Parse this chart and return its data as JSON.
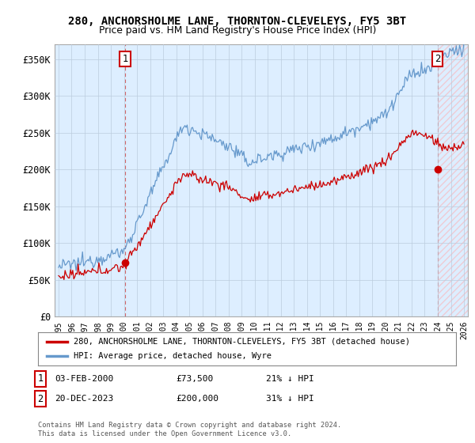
{
  "title": "280, ANCHORSHOLME LANE, THORNTON-CLEVELEYS, FY5 3BT",
  "subtitle": "Price paid vs. HM Land Registry's House Price Index (HPI)",
  "title_fontsize": 10,
  "subtitle_fontsize": 9,
  "ylim": [
    0,
    370000
  ],
  "yticks": [
    0,
    50000,
    100000,
    150000,
    200000,
    250000,
    300000,
    350000
  ],
  "ytick_labels": [
    "£0",
    "£50K",
    "£100K",
    "£150K",
    "£200K",
    "£250K",
    "£300K",
    "£350K"
  ],
  "xlim_start": 1994.7,
  "xlim_end": 2026.3,
  "xtick_years": [
    1995,
    1996,
    1997,
    1998,
    1999,
    2000,
    2001,
    2002,
    2003,
    2004,
    2005,
    2006,
    2007,
    2008,
    2009,
    2010,
    2011,
    2012,
    2013,
    2014,
    2015,
    2016,
    2017,
    2018,
    2019,
    2020,
    2021,
    2022,
    2023,
    2024,
    2025,
    2026
  ],
  "background_color": "#ffffff",
  "chart_bg_color": "#ddeeff",
  "grid_color": "#bbccdd",
  "hpi_color": "#6699cc",
  "price_paid_color": "#cc0000",
  "sale1_year": 2000.09,
  "sale1_price": 73500,
  "sale2_year": 2023.97,
  "sale2_price": 200000,
  "legend_line1": "280, ANCHORSHOLME LANE, THORNTON-CLEVELEYS, FY5 3BT (detached house)",
  "legend_line2": "HPI: Average price, detached house, Wyre",
  "footnote": "Contains HM Land Registry data © Crown copyright and database right 2024.\nThis data is licensed under the Open Government Licence v3.0.",
  "vline1_year": 2000.09,
  "vline2_year": 2023.97,
  "hatch_color": "#ffcccc"
}
